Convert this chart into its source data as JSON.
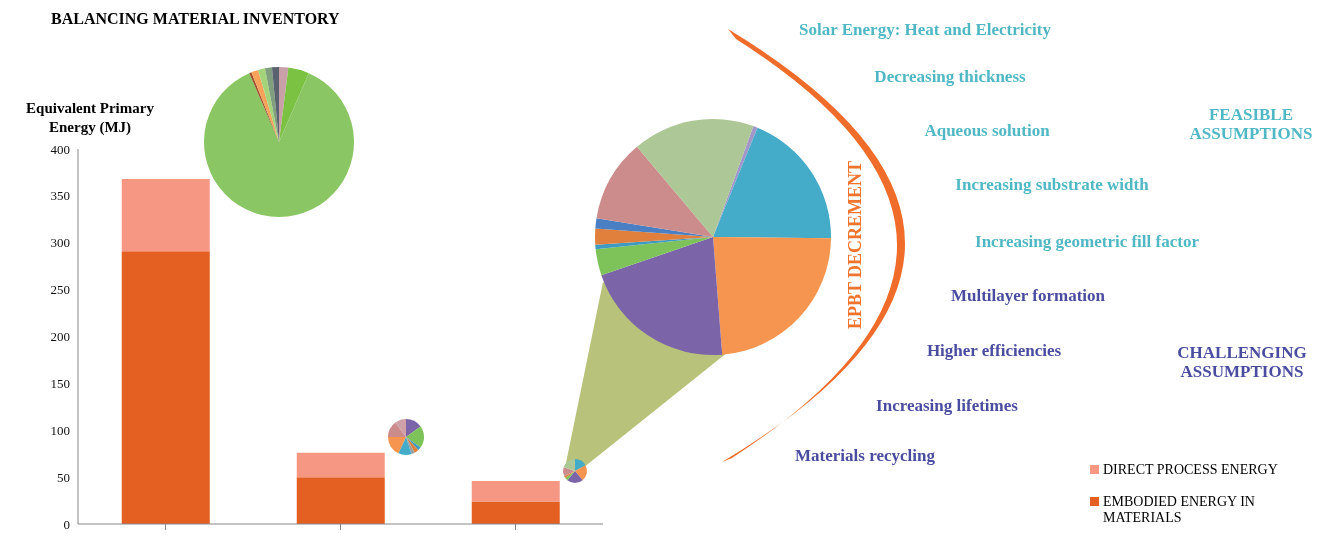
{
  "chart_data": [
    {
      "type": "bar",
      "title": "BALANCING MATERIAL INVENTORY",
      "ylabel": "Equivalent Primary Energy (MJ)",
      "categories": [
        null,
        null,
        null
      ],
      "stacked": true,
      "series": [
        {
          "name": "EMBODIED ENERGY IN MATERIALS",
          "color": "#e35f22",
          "values": [
            291,
            50,
            24
          ]
        },
        {
          "name": "DIRECT PROCESS ENERGY",
          "color": "#f69784",
          "values": [
            77,
            26,
            22
          ]
        }
      ],
      "ylim": [
        0,
        400
      ],
      "yticks": [
        0,
        50,
        100,
        150,
        200,
        250,
        300,
        350,
        400
      ],
      "legend": "bottom right"
    },
    {
      "type": "pie",
      "categories": [
        null,
        null,
        null,
        null,
        null,
        null,
        null,
        null
      ],
      "values": [
        2,
        4.5,
        87,
        0.5,
        1.5,
        1.5,
        1.5,
        1.5
      ],
      "colors": [
        "#c9a0a8",
        "#7cc242",
        "#8ac664",
        "#a0522d",
        "#f7a35c",
        "#a3d47a",
        "#7f9f7f",
        "#5a6270"
      ]
    },
    {
      "type": "pie",
      "categories": [
        null,
        null,
        null,
        null,
        null,
        null,
        null,
        null,
        null,
        null
      ],
      "values": [
        0.6,
        19,
        23.6,
        21,
        3.6,
        0.6,
        2.2,
        1.4,
        11.3,
        16.7
      ],
      "colors": [
        "#a397c9",
        "#44abc8",
        "#f5954f",
        "#7b64a8",
        "#7dc35a",
        "#3e9ac0",
        "#e0803c",
        "#4a7fc4",
        "#cc8c8c",
        "#adc796"
      ]
    },
    {
      "type": "other",
      "title": "EPBT DECREMENT",
      "color": "#f0742e"
    },
    {
      "type": "other",
      "title": "FEASIBLE ASSUMPTIONS",
      "color": "#4fb8c4",
      "annotations": [
        "Solar Energy: Heat and Electricity",
        "Decreasing thickness",
        "Aqueous solution",
        "Increasing substrate width",
        "Increasing geometric fill factor"
      ]
    },
    {
      "type": "other",
      "title": "CHALLENGING ASSUMPTIONS",
      "color": "#4a4ca0",
      "annotations": [
        "Multilayer formation",
        "Higher efficiencies",
        "Increasing lifetimes",
        "Materials recycling"
      ]
    }
  ]
}
